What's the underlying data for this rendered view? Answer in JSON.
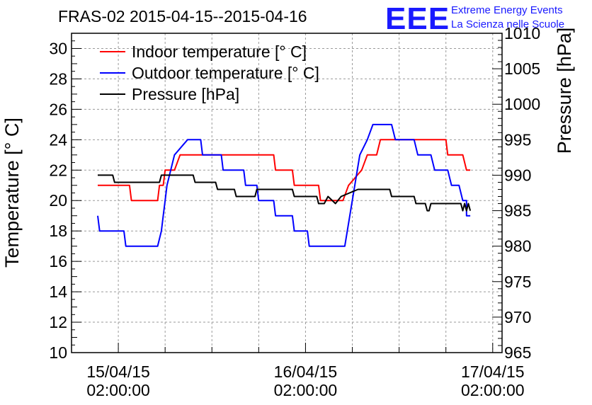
{
  "chart_data": {
    "type": "line",
    "title": "FRAS-02 2015-04-15--2015-04-16",
    "ylabel": "Temperature [° C]",
    "y2label": "Pressure [hPa]",
    "xlabel": "",
    "ylim": [
      10,
      31
    ],
    "y2lim": [
      965,
      1010
    ],
    "xlim": [
      -0.25,
      2.05
    ],
    "grid": true,
    "legend_position": "top-left",
    "y_ticks": [
      "10",
      "12",
      "14",
      "16",
      "18",
      "20",
      "22",
      "24",
      "26",
      "28",
      "30"
    ],
    "y2_ticks": [
      "965",
      "970",
      "975",
      "980",
      "985",
      "990",
      "995",
      "1000",
      "1005",
      "1010"
    ],
    "x_ticks": [
      {
        "value": 0,
        "line1": "15/04/15",
        "line2": "02:00:00"
      },
      {
        "value": 1,
        "line1": "16/04/15",
        "line2": "02:00:00"
      },
      {
        "value": 2,
        "line1": "17/04/15",
        "line2": "02:00:00"
      }
    ],
    "x_units": "days since 15/04/15 02:00:00",
    "series": [
      {
        "name": "Indoor temperature [° C]",
        "color": "#ff0000",
        "axis": "left",
        "points": [
          [
            -0.11,
            21
          ],
          [
            0.06,
            21
          ],
          [
            0.07,
            20
          ],
          [
            0.21,
            20
          ],
          [
            0.22,
            21
          ],
          [
            0.24,
            21
          ],
          [
            0.25,
            22
          ],
          [
            0.3,
            22
          ],
          [
            0.33,
            23
          ],
          [
            0.83,
            23
          ],
          [
            0.84,
            22
          ],
          [
            0.93,
            22
          ],
          [
            0.94,
            21
          ],
          [
            1.07,
            21
          ],
          [
            1.08,
            20
          ],
          [
            1.2,
            20
          ],
          [
            1.23,
            21
          ],
          [
            1.3,
            22
          ],
          [
            1.33,
            23
          ],
          [
            1.38,
            23
          ],
          [
            1.4,
            24
          ],
          [
            1.75,
            24
          ],
          [
            1.76,
            23
          ],
          [
            1.84,
            23
          ],
          [
            1.86,
            22
          ],
          [
            1.88,
            22
          ]
        ]
      },
      {
        "name": "Outdoor temperature [° C]",
        "color": "#0000ff",
        "axis": "left",
        "points": [
          [
            -0.11,
            19
          ],
          [
            -0.1,
            18
          ],
          [
            0.03,
            18
          ],
          [
            0.04,
            17
          ],
          [
            0.21,
            17
          ],
          [
            0.23,
            18
          ],
          [
            0.24,
            19
          ],
          [
            0.25,
            20
          ],
          [
            0.26,
            21
          ],
          [
            0.28,
            22
          ],
          [
            0.3,
            23
          ],
          [
            0.37,
            24
          ],
          [
            0.44,
            24
          ],
          [
            0.45,
            23
          ],
          [
            0.55,
            23
          ],
          [
            0.56,
            22
          ],
          [
            0.67,
            22
          ],
          [
            0.68,
            21
          ],
          [
            0.74,
            21
          ],
          [
            0.75,
            20
          ],
          [
            0.83,
            20
          ],
          [
            0.84,
            19
          ],
          [
            0.93,
            19
          ],
          [
            0.94,
            18
          ],
          [
            1.01,
            18
          ],
          [
            1.02,
            17
          ],
          [
            1.21,
            17
          ],
          [
            1.25,
            20
          ],
          [
            1.29,
            23
          ],
          [
            1.33,
            24
          ],
          [
            1.36,
            25
          ],
          [
            1.46,
            25
          ],
          [
            1.48,
            24
          ],
          [
            1.58,
            24
          ],
          [
            1.6,
            23
          ],
          [
            1.67,
            23
          ],
          [
            1.69,
            22
          ],
          [
            1.76,
            22
          ],
          [
            1.78,
            21
          ],
          [
            1.82,
            21
          ],
          [
            1.84,
            20
          ],
          [
            1.86,
            20
          ],
          [
            1.86,
            19
          ],
          [
            1.88,
            19
          ]
        ]
      },
      {
        "name": "Pressure [hPa]",
        "color": "#000000",
        "axis": "right",
        "points": [
          [
            -0.11,
            990
          ],
          [
            -0.03,
            990
          ],
          [
            -0.02,
            989
          ],
          [
            0.22,
            989
          ],
          [
            0.23,
            990
          ],
          [
            0.4,
            990
          ],
          [
            0.41,
            989
          ],
          [
            0.52,
            989
          ],
          [
            0.53,
            988
          ],
          [
            0.62,
            988
          ],
          [
            0.63,
            987
          ],
          [
            0.73,
            987
          ],
          [
            0.74,
            988
          ],
          [
            0.93,
            988
          ],
          [
            0.94,
            987
          ],
          [
            1.06,
            987
          ],
          [
            1.07,
            986
          ],
          [
            1.1,
            986
          ],
          [
            1.12,
            987
          ],
          [
            1.16,
            986
          ],
          [
            1.19,
            987
          ],
          [
            1.28,
            988
          ],
          [
            1.31,
            988
          ],
          [
            1.32,
            988
          ],
          [
            1.45,
            988
          ],
          [
            1.46,
            987
          ],
          [
            1.58,
            987
          ],
          [
            1.59,
            986
          ],
          [
            1.64,
            986
          ],
          [
            1.65,
            985
          ],
          [
            1.66,
            985
          ],
          [
            1.67,
            986
          ],
          [
            1.83,
            986
          ],
          [
            1.84,
            985
          ],
          [
            1.85,
            986
          ],
          [
            1.86,
            985
          ],
          [
            1.87,
            986
          ],
          [
            1.88,
            985
          ]
        ]
      }
    ]
  },
  "logo": {
    "mark": "EEE",
    "line1": "Extreme Energy Events",
    "line2": "La Scienza nelle Scuole",
    "color": "#1a1aff"
  }
}
